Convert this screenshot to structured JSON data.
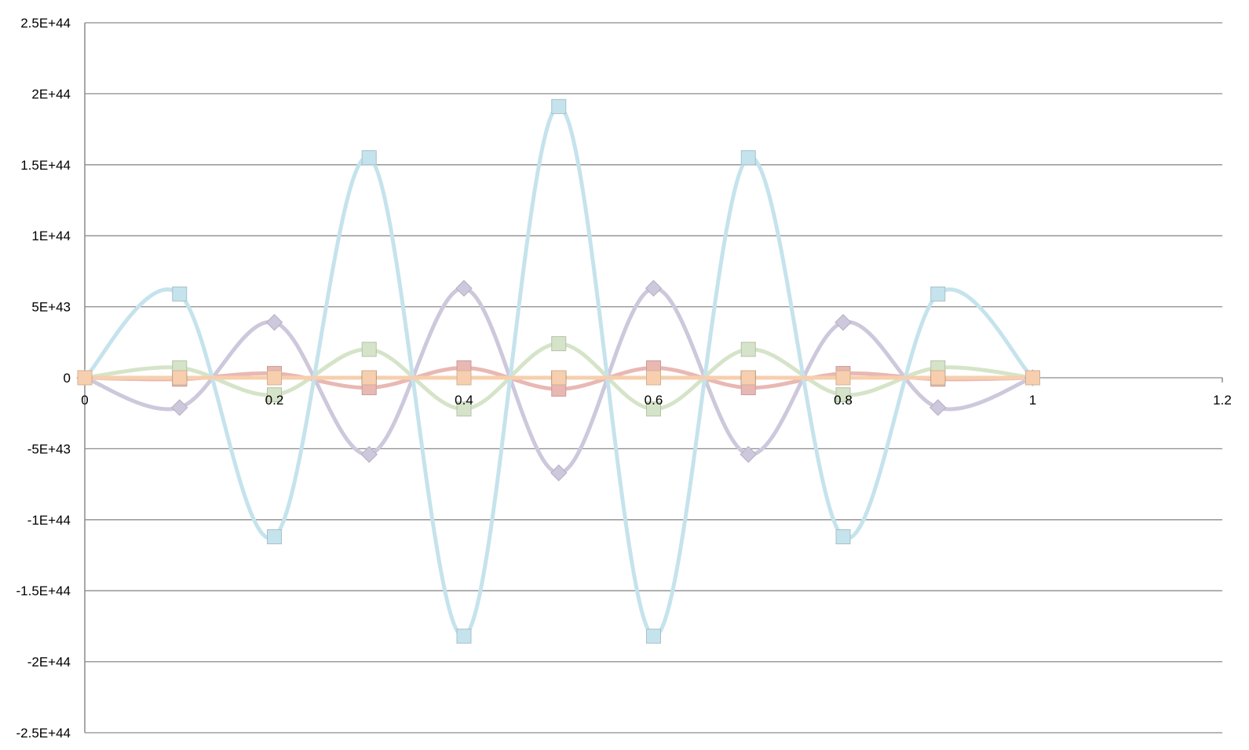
{
  "chart_data": {
    "type": "scatter",
    "title": "",
    "xlabel": "",
    "ylabel": "",
    "xlim": [
      0,
      1.2
    ],
    "ylim": [
      -2.5e+44,
      2.5e+44
    ],
    "x_ticks": [
      0,
      0.2,
      0.4,
      0.6,
      0.8,
      1,
      1.2
    ],
    "x_tick_labels": [
      "0",
      "0.2",
      "0.4",
      "0.6",
      "0.8",
      "1",
      "1.2"
    ],
    "y_ticks": [
      2.5e+44,
      2e+44,
      1.5e+44,
      1e+44,
      5e+43,
      0,
      -5e+43,
      -1e+44,
      -1.5e+44,
      -2e+44,
      -2.5e+44
    ],
    "y_tick_labels": [
      "2.5E+44",
      "2E+44",
      "1.5E+44",
      "1E+44",
      "5E+43",
      "0",
      "-5E+43",
      "-1E+44",
      "-1.5E+44",
      "-2E+44",
      "-2.5E+44"
    ],
    "grid": "horizontal",
    "legend": "none",
    "smooth_lines": true,
    "x": [
      0,
      0.1,
      0.2,
      0.3,
      0.4,
      0.5,
      0.6,
      0.7,
      0.8,
      0.9,
      1.0
    ],
    "series": [
      {
        "color": "#111111",
        "marker": "square",
        "values": [
          0,
          0,
          0,
          0,
          0,
          0,
          0,
          0,
          0,
          0,
          0
        ]
      },
      {
        "color": "#e9b8b3",
        "marker": "square",
        "values": [
          0,
          -1e+42,
          3e+42,
          -7e+42,
          7e+42,
          -8e+42,
          7e+42,
          -7e+42,
          3e+42,
          -1e+42,
          0
        ]
      },
      {
        "color": "#d5e4c8",
        "marker": "square",
        "values": [
          0,
          7e+42,
          -1.2e+43,
          2e+43,
          -2.2e+43,
          2.4e+43,
          -2.2e+43,
          2e+43,
          -1.2e+43,
          7e+42,
          0
        ]
      },
      {
        "color": "#cec8dc",
        "marker": "diamond",
        "values": [
          0,
          -2.1e+43,
          3.9e+43,
          -5.4e+43,
          6.3e+43,
          -6.7e+43,
          6.3e+43,
          -5.4e+43,
          3.9e+43,
          -2.1e+43,
          0
        ]
      },
      {
        "color": "#c5e3ec",
        "marker": "square",
        "values": [
          0,
          5.9e+43,
          -1.12e+44,
          1.55e+44,
          -1.82e+44,
          1.91e+44,
          -1.82e+44,
          1.55e+44,
          -1.12e+44,
          5.9e+43,
          0
        ]
      },
      {
        "color": "#f7cfae",
        "marker": "square",
        "values": [
          0,
          0,
          0,
          0,
          0,
          0,
          0,
          0,
          0,
          0,
          0
        ]
      }
    ]
  }
}
